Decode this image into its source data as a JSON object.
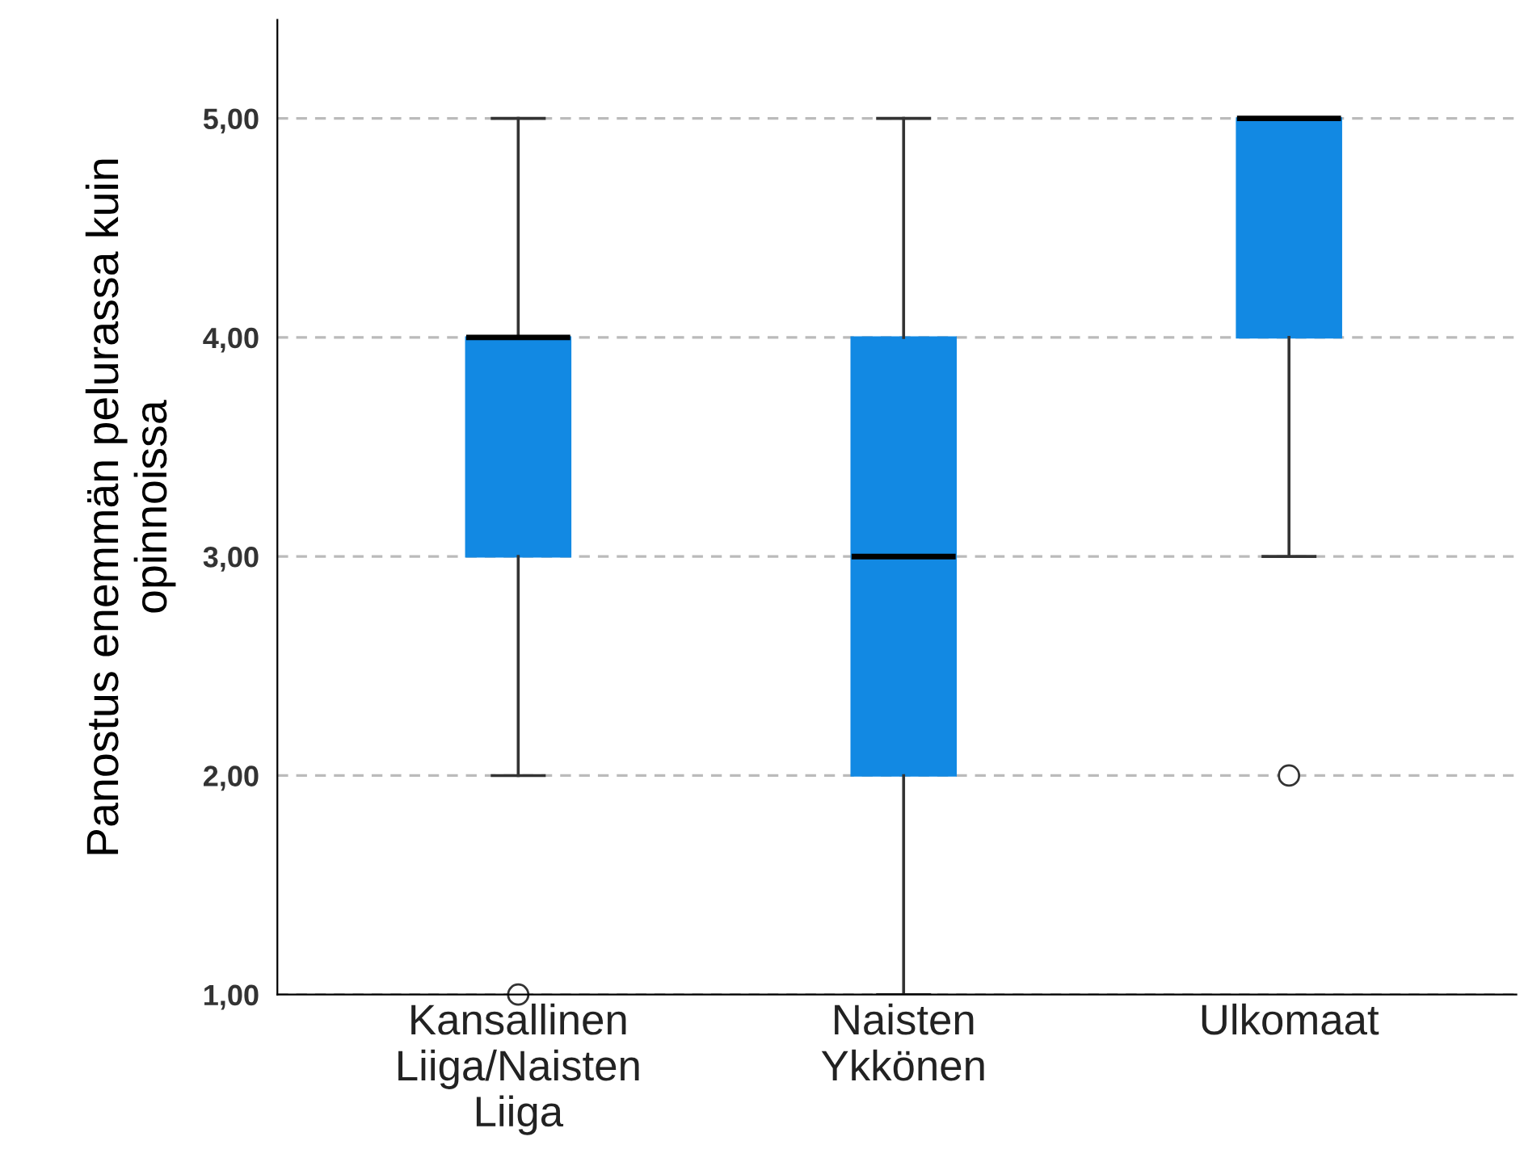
{
  "chart_data": {
    "type": "box",
    "ylabel": "Panostus enemmän pelurassa kuin\nopinnoissa",
    "categories": [
      "Kansallinen\nLiiga/Naisten\nLiiga",
      "Naisten\nYkkönen",
      "Ulkomaat"
    ],
    "boxes": [
      {
        "low": 2,
        "q1": 3,
        "median": 4,
        "q3": 4,
        "high": 5,
        "outliers": [
          1
        ]
      },
      {
        "low": 1,
        "q1": 2,
        "median": 3,
        "q3": 4,
        "high": 5
      },
      {
        "low": 3,
        "q1": 4,
        "median": 5,
        "q3": 5,
        "high": 5,
        "outliers": [
          2
        ]
      }
    ],
    "color": "#1289e3",
    "ylim": [
      1,
      5.45
    ],
    "yticks": [
      {
        "value": 1,
        "label": "1,00"
      },
      {
        "value": 2,
        "label": "2,00"
      },
      {
        "value": 3,
        "label": "3,00"
      },
      {
        "value": 4,
        "label": "4,00"
      },
      {
        "value": 5,
        "label": "5,00"
      }
    ],
    "grid": "y"
  }
}
